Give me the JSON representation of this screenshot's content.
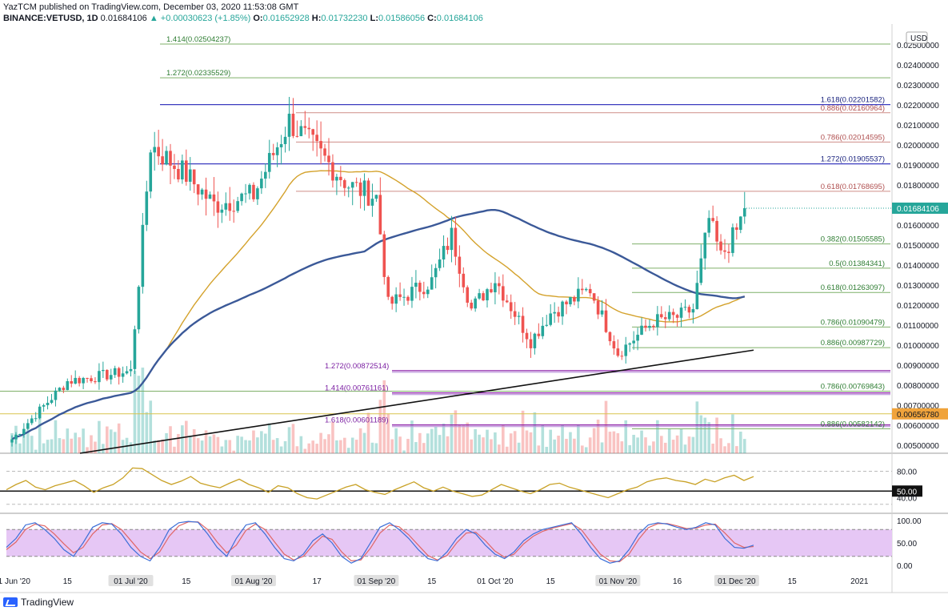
{
  "header": {
    "publisher": "YazTCM published on TradingView.com, December 03, 2020 11:53:08 GMT",
    "symbol": "BINANCE:VETUSD, 1D",
    "last": "0.01684106",
    "change": "▲ +0.00030623 (+1.85%)",
    "o_label": "O:",
    "o": "0.01652928",
    "h_label": "H:",
    "h": "0.01732230",
    "l_label": "L:",
    "l": "0.01586056",
    "c_label": "C:",
    "c": "0.01684106"
  },
  "footer": {
    "brand": "TradingView"
  },
  "colors": {
    "up": "#26a69a",
    "down": "#ef5350",
    "fib_green": "#6aa84f",
    "fib_red": "#c0706c",
    "fib_blue": "#2a2ab0",
    "fib_purple": "#7b1fa2",
    "ma_gold": "#d4a22c",
    "ma_navy": "#3b5998",
    "rsi": "#c9a227",
    "stoch_k": "#3d6fd8",
    "stoch_d": "#e06666",
    "stoch_band": "#e6c7f5"
  },
  "chart_data": [
    {
      "type": "candlestick",
      "title": "BINANCE:VETUSD, 1D",
      "currency": "USD",
      "ylim": [
        0.0046,
        0.0258
      ],
      "y_ticks": [
        "0.02500000",
        "0.02400000",
        "0.02300000",
        "0.02200000",
        "0.02100000",
        "0.02000000",
        "0.01900000",
        "0.01800000",
        "0.01700000",
        "0.01600000",
        "0.01500000",
        "0.01400000",
        "0.01300000",
        "0.01200000",
        "0.01100000",
        "0.01000000",
        "0.00900000",
        "0.00800000",
        "0.00700000",
        "0.00600000",
        "0.00500000"
      ],
      "x_ticks": [
        "01 Jun '20",
        "15",
        "01 Jul '20",
        "15",
        "01 Aug '20",
        "17",
        "01 Sep '20",
        "15",
        "01 Oct '20",
        "15",
        "01 Nov '20",
        "16",
        "01 Dec '20",
        "15",
        "2021"
      ],
      "x_ticks_highlight": [
        "01 Jul '20",
        "01 Aug '20",
        "01 Sep '20",
        "01 Nov '20",
        "01 Dec '20"
      ],
      "key_price_path": [
        [
          "01 Jun '20",
          0.0053
        ],
        [
          "15",
          0.0082
        ],
        [
          "01 Jul '20",
          0.0087
        ],
        [
          "06 Jul",
          0.02
        ],
        [
          "15",
          0.0185
        ],
        [
          "22 Jul",
          0.017
        ],
        [
          "01 Aug '20",
          0.0175
        ],
        [
          "10 Aug",
          0.0212
        ],
        [
          "17",
          0.0197
        ],
        [
          "25 Aug",
          0.018
        ],
        [
          "01 Sep '20",
          0.0174
        ],
        [
          "04 Sep",
          0.012
        ],
        [
          "15",
          0.0132
        ],
        [
          "20 Sep",
          0.0155
        ],
        [
          "25 Sep",
          0.0118
        ],
        [
          "01 Oct '20",
          0.0133
        ],
        [
          "10 Oct",
          0.0102
        ],
        [
          "15",
          0.0116
        ],
        [
          "25 Oct",
          0.0128
        ],
        [
          "01 Nov '20",
          0.0096
        ],
        [
          "10 Nov",
          0.0112
        ],
        [
          "16",
          0.0114
        ],
        [
          "20 Nov",
          0.0118
        ],
        [
          "24 Nov",
          0.0163
        ],
        [
          "27 Nov",
          0.0144
        ],
        [
          "01 Dec '20",
          0.0157
        ],
        [
          "03 Dec",
          0.0168
        ]
      ],
      "current_price": "0.01684106",
      "marked_level": "0.00656780",
      "fib_levels": [
        {
          "label": "1.414",
          "value": "0.02504237",
          "price": 0.02504237,
          "color": "green"
        },
        {
          "label": "1.272",
          "value": "0.02335529",
          "price": 0.02335529,
          "color": "green"
        },
        {
          "label": "1.618",
          "value": "0.02201582",
          "price": 0.02201582,
          "color": "blue"
        },
        {
          "label": "0.886",
          "value": "0.02160964",
          "price": 0.02160964,
          "color": "red"
        },
        {
          "label": "0.786",
          "value": "0.02014595",
          "price": 0.02014595,
          "color": "red"
        },
        {
          "label": "1.272",
          "value": "0.01905537",
          "price": 0.01905537,
          "color": "blue"
        },
        {
          "label": "0.618",
          "value": "0.01768695",
          "price": 0.01768695,
          "color": "red"
        },
        {
          "label": "0.382",
          "value": "0.01505585",
          "price": 0.01505585,
          "color": "green"
        },
        {
          "label": "0.5",
          "value": "0.01384341",
          "price": 0.01384341,
          "color": "green"
        },
        {
          "label": "0.618",
          "value": "0.01263097",
          "price": 0.01263097,
          "color": "green"
        },
        {
          "label": "0.786",
          "value": "0.01090479",
          "price": 0.01090479,
          "color": "green"
        },
        {
          "label": "0.886",
          "value": "0.00987729",
          "price": 0.00987729,
          "color": "green"
        },
        {
          "label": "1.272",
          "value": "0.00872514",
          "price": 0.00872514,
          "color": "purple"
        },
        {
          "label": "1.414",
          "value": "0.00761161",
          "price": 0.00761161,
          "color": "purple"
        },
        {
          "label": "0.786",
          "value": "0.00769843",
          "price": 0.00769843,
          "color": "green"
        },
        {
          "label": "1.618",
          "value": "0.00601189",
          "price": 0.00601189,
          "color": "purple"
        },
        {
          "label": "0.886",
          "value": "0.00582142",
          "price": 0.00582142,
          "color": "green"
        }
      ]
    },
    {
      "type": "line",
      "title": "RSI",
      "ylim": [
        0,
        100
      ],
      "y_ticks": [
        "80.00",
        "50.00",
        "40.00"
      ],
      "marked_level": "50.00",
      "values": [
        52,
        60,
        66,
        56,
        52,
        58,
        62,
        66,
        58,
        48,
        55,
        60,
        70,
        85,
        84,
        75,
        66,
        60,
        65,
        72,
        62,
        58,
        55,
        62,
        68,
        60,
        55,
        48,
        58,
        55,
        46,
        40,
        38,
        44,
        50,
        56,
        60,
        52,
        48,
        45,
        52,
        58,
        64,
        55,
        50,
        56,
        50,
        46,
        42,
        44,
        52,
        60,
        55,
        50,
        46,
        52,
        60,
        62,
        56,
        52,
        48,
        44,
        40,
        46,
        52,
        56,
        64,
        68,
        70,
        66,
        64,
        60,
        68,
        64,
        70,
        74,
        66,
        72
      ]
    },
    {
      "type": "line",
      "title": "Stoch RSI",
      "ylim": [
        0,
        100
      ],
      "y_ticks": [
        "100.00",
        "50.00",
        "0.00"
      ],
      "series_k": [
        40,
        60,
        90,
        95,
        80,
        60,
        35,
        20,
        50,
        85,
        95,
        92,
        70,
        40,
        20,
        10,
        40,
        80,
        95,
        98,
        96,
        70,
        40,
        20,
        60,
        90,
        95,
        70,
        40,
        15,
        10,
        25,
        55,
        70,
        50,
        20,
        5,
        15,
        50,
        85,
        95,
        80,
        60,
        35,
        15,
        10,
        30,
        60,
        80,
        70,
        45,
        25,
        15,
        30,
        55,
        70,
        80,
        85,
        90,
        95,
        70,
        40,
        15,
        5,
        10,
        35,
        70,
        90,
        95,
        92,
        85,
        80,
        85,
        95,
        90,
        60,
        40,
        38,
        45
      ],
      "series_d": [
        35,
        52,
        80,
        92,
        88,
        70,
        48,
        28,
        40,
        70,
        90,
        93,
        80,
        55,
        30,
        15,
        30,
        65,
        88,
        97,
        97,
        80,
        52,
        28,
        45,
        78,
        92,
        80,
        52,
        25,
        12,
        20,
        45,
        65,
        58,
        30,
        10,
        12,
        38,
        72,
        90,
        86,
        68,
        45,
        22,
        12,
        22,
        50,
        72,
        74,
        55,
        32,
        18,
        25,
        48,
        65,
        76,
        83,
        88,
        93,
        80,
        52,
        25,
        10,
        8,
        25,
        58,
        84,
        93,
        93,
        88,
        82,
        83,
        90,
        92,
        72,
        50,
        40,
        42
      ]
    }
  ]
}
